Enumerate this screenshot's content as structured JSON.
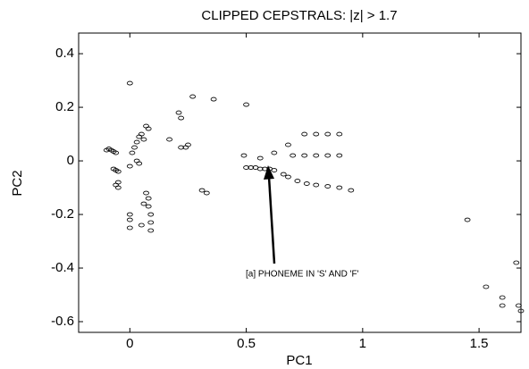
{
  "chart_data": {
    "type": "scatter",
    "title": "CLIPPED CEPSTRALS: |z| > 1.7",
    "x_label": "PC1",
    "y_label": "PC2",
    "annotation": "[a] PHONEME IN 'S' AND 'F'",
    "xlim": [
      -0.22,
      1.68
    ],
    "ylim": [
      -0.64,
      0.477
    ],
    "xticks": [
      0,
      0.5,
      1,
      1.5
    ],
    "yticks": [
      -0.6,
      -0.4,
      -0.2,
      0,
      0.2,
      0.4
    ],
    "grid": false,
    "color": "#000000",
    "x": [
      0.0,
      0.0,
      0.0,
      0.0,
      0.0,
      -0.1,
      -0.09,
      -0.08,
      -0.07,
      -0.06,
      -0.07,
      -0.06,
      -0.05,
      -0.05,
      -0.06,
      -0.05,
      0.01,
      0.02,
      0.03,
      0.04,
      0.05,
      0.06,
      0.03,
      0.04,
      0.07,
      0.08,
      0.08,
      0.09,
      0.09,
      0.09,
      0.06,
      0.05,
      0.07,
      0.08,
      0.21,
      0.22,
      0.22,
      0.24,
      0.25,
      0.27,
      0.36,
      0.5,
      0.31,
      0.33,
      0.17,
      0.49,
      0.56,
      0.62,
      0.68,
      0.75,
      0.8,
      0.85,
      0.9,
      0.7,
      0.75,
      0.8,
      0.85,
      0.9,
      0.5,
      0.52,
      0.54,
      0.56,
      0.58,
      0.6,
      0.62,
      0.66,
      0.68,
      0.72,
      0.76,
      0.8,
      0.85,
      0.9,
      0.95,
      1.45,
      1.53,
      1.6,
      1.6,
      1.66,
      1.67,
      1.68
    ],
    "values": [
      0.29,
      -0.02,
      -0.2,
      -0.22,
      -0.25,
      0.04,
      0.045,
      0.04,
      0.035,
      0.03,
      -0.03,
      -0.035,
      -0.04,
      -0.08,
      -0.09,
      -0.1,
      0.03,
      0.05,
      0.07,
      0.09,
      0.1,
      0.08,
      0.0,
      -0.01,
      -0.12,
      -0.14,
      -0.17,
      -0.2,
      -0.23,
      -0.26,
      -0.16,
      -0.24,
      0.13,
      0.12,
      0.18,
      0.16,
      0.05,
      0.05,
      0.06,
      0.24,
      0.23,
      0.21,
      -0.11,
      -0.12,
      0.08,
      0.02,
      0.01,
      0.03,
      0.06,
      0.1,
      0.1,
      0.1,
      0.1,
      0.02,
      0.02,
      0.02,
      0.02,
      0.02,
      -0.025,
      -0.025,
      -0.025,
      -0.03,
      -0.03,
      -0.03,
      -0.035,
      -0.05,
      -0.06,
      -0.075,
      -0.085,
      -0.09,
      -0.095,
      -0.1,
      -0.11,
      -0.22,
      -0.47,
      -0.51,
      -0.54,
      -0.38,
      -0.54,
      -0.56
    ]
  }
}
